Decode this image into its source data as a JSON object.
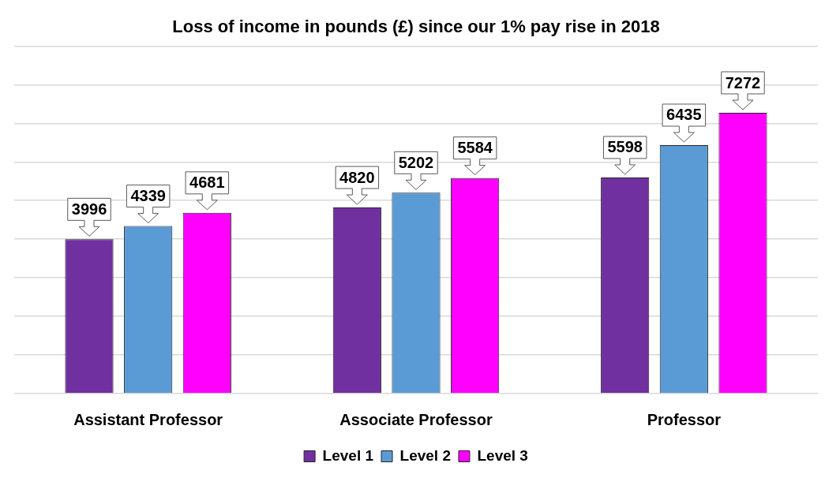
{
  "chart_data": {
    "type": "bar",
    "title": "Loss of income in pounds (£) since our 1% pay rise in 2018",
    "categories": [
      "Assistant Professor",
      "Associate Professor",
      "Professor"
    ],
    "series": [
      {
        "name": "Level 1",
        "color": "#7030a0",
        "values": [
          3996,
          4820,
          5598
        ]
      },
      {
        "name": "Level 2",
        "color": "#5b9bd5",
        "values": [
          4339,
          5202,
          6435
        ]
      },
      {
        "name": "Level 3",
        "color": "#ff00ff",
        "values": [
          4681,
          5584,
          7272
        ]
      }
    ],
    "ylim": [
      0,
      9000
    ],
    "tick_labels": "x",
    "grid": "y",
    "legend": "bottom",
    "data_labels": true
  }
}
